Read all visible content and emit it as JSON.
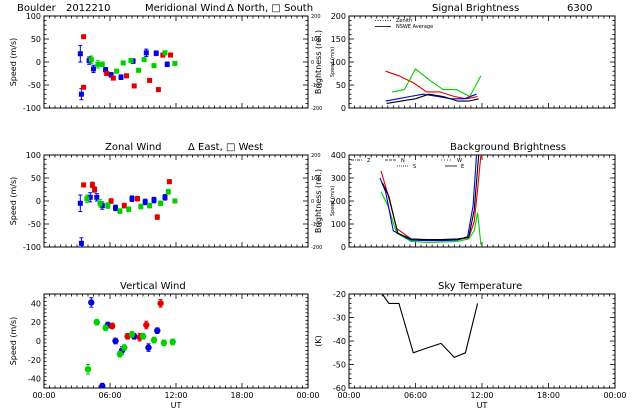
{
  "header": {
    "site": "Boulder",
    "date": "2012210"
  },
  "colors": {
    "red": "#e00000",
    "green": "#00d000",
    "blue": "#0000e0",
    "black": "#000000"
  },
  "chart_data": [
    {
      "id": "meridional",
      "type": "scatter",
      "title": "Meridional Wind",
      "legend_text": "Δ North, □ South",
      "ylabel": "Speed (m/s)",
      "y2label": "Speed (m/s)",
      "xlabel": "",
      "xlim": [
        0,
        24
      ],
      "ylim": [
        -100,
        100
      ],
      "y2lim": [
        -200,
        200
      ],
      "xticks": [
        0,
        6,
        12,
        18,
        24
      ],
      "xticklabels": [
        "",
        "",
        "",
        "",
        ""
      ],
      "yticks": [
        -100,
        -50,
        0,
        50,
        100
      ],
      "yticklabels": [
        "-100",
        "-50",
        "0",
        "50",
        "100"
      ],
      "y2ticks": [
        -200,
        -100,
        0,
        100,
        200
      ],
      "y2ticklabels": [
        "-200",
        "-100",
        "0",
        "100",
        "200"
      ],
      "series": [
        {
          "name": "blue",
          "color": "#0000e0",
          "marker": "square",
          "points": [
            {
              "x": 3.3,
              "y": 18,
              "err": 18
            },
            {
              "x": 3.4,
              "y": -70,
              "err": 12
            },
            {
              "x": 4.1,
              "y": 3,
              "err": 8
            },
            {
              "x": 4.5,
              "y": -15,
              "err": 8
            },
            {
              "x": 5.6,
              "y": -17,
              "err": 5
            },
            {
              "x": 6.1,
              "y": -28,
              "err": 5
            },
            {
              "x": 7.0,
              "y": -33,
              "err": 5
            },
            {
              "x": 8.1,
              "y": 2,
              "err": 5
            },
            {
              "x": 9.3,
              "y": 20,
              "err": 8
            },
            {
              "x": 10.2,
              "y": 19,
              "err": 5
            },
            {
              "x": 11.2,
              "y": -5,
              "err": 5
            }
          ]
        },
        {
          "name": "red",
          "color": "#e00000",
          "marker": "square",
          "points": [
            {
              "x": 3.6,
              "y": 55,
              "err": 3
            },
            {
              "x": 3.6,
              "y": -55,
              "err": 3
            },
            {
              "x": 5.7,
              "y": -25,
              "err": 4
            },
            {
              "x": 6.3,
              "y": -35,
              "err": 4
            },
            {
              "x": 7.5,
              "y": -30,
              "err": 4
            },
            {
              "x": 8.2,
              "y": -52,
              "err": 4
            },
            {
              "x": 9.6,
              "y": -40,
              "err": 4
            },
            {
              "x": 10.4,
              "y": -60,
              "err": 4
            },
            {
              "x": 10.8,
              "y": 15,
              "err": 4
            },
            {
              "x": 11.5,
              "y": 15,
              "err": 4
            }
          ]
        },
        {
          "name": "green",
          "color": "#00d000",
          "marker": "square",
          "points": [
            {
              "x": 4.3,
              "y": 5,
              "err": 8
            },
            {
              "x": 4.9,
              "y": -5,
              "err": 8
            },
            {
              "x": 5.3,
              "y": -5,
              "err": 5
            },
            {
              "x": 6.6,
              "y": -20,
              "err": 4
            },
            {
              "x": 7.2,
              "y": -2,
              "err": 4
            },
            {
              "x": 7.9,
              "y": 3,
              "err": 4
            },
            {
              "x": 8.6,
              "y": -18,
              "err": 4
            },
            {
              "x": 9.1,
              "y": 5,
              "err": 4
            },
            {
              "x": 10.0,
              "y": -8,
              "err": 4
            },
            {
              "x": 11.0,
              "y": 20,
              "err": 4
            },
            {
              "x": 11.9,
              "y": -3,
              "err": 4
            }
          ]
        }
      ]
    },
    {
      "id": "zonal",
      "type": "scatter",
      "title": "Zonal Wind",
      "legend_text": "Δ East, □ West",
      "ylabel": "Speed (m/s)",
      "y2label": "Speed (m/s)",
      "xlabel": "",
      "xlim": [
        0,
        24
      ],
      "ylim": [
        -100,
        100
      ],
      "y2lim": [
        -200,
        200
      ],
      "xticks": [
        0,
        6,
        12,
        18,
        24
      ],
      "xticklabels": [
        "",
        "",
        "",
        "",
        ""
      ],
      "yticks": [
        -100,
        -50,
        0,
        50,
        100
      ],
      "yticklabels": [
        "-100",
        "-50",
        "0",
        "50",
        "100"
      ],
      "y2ticks": [
        -200,
        -100,
        0,
        100,
        200
      ],
      "y2ticklabels": [
        "-200",
        "-100",
        "0",
        "100",
        "200"
      ],
      "series": [
        {
          "name": "blue",
          "color": "#0000e0",
          "marker": "square",
          "points": [
            {
              "x": 3.3,
              "y": -5,
              "err": 18
            },
            {
              "x": 3.4,
              "y": -92,
              "err": 12
            },
            {
              "x": 4.2,
              "y": 8,
              "err": 10
            },
            {
              "x": 4.8,
              "y": 8,
              "err": 8
            },
            {
              "x": 5.3,
              "y": -10,
              "err": 8
            },
            {
              "x": 6.5,
              "y": -15,
              "err": 6
            },
            {
              "x": 8.0,
              "y": 5,
              "err": 6
            },
            {
              "x": 9.2,
              "y": -2,
              "err": 6
            },
            {
              "x": 10.0,
              "y": 2,
              "err": 6
            },
            {
              "x": 11.0,
              "y": 8,
              "err": 6
            }
          ]
        },
        {
          "name": "red",
          "color": "#e00000",
          "marker": "square",
          "points": [
            {
              "x": 3.6,
              "y": 35,
              "err": 4
            },
            {
              "x": 4.4,
              "y": 35,
              "err": 6
            },
            {
              "x": 4.6,
              "y": 25,
              "err": 6
            },
            {
              "x": 6.1,
              "y": 0,
              "err": 5
            },
            {
              "x": 7.3,
              "y": -10,
              "err": 5
            },
            {
              "x": 8.5,
              "y": 5,
              "err": 5
            },
            {
              "x": 10.3,
              "y": -35,
              "err": 5
            },
            {
              "x": 11.4,
              "y": 42,
              "err": 4
            }
          ]
        },
        {
          "name": "green",
          "color": "#00d000",
          "marker": "square",
          "points": [
            {
              "x": 3.9,
              "y": 5,
              "err": 8
            },
            {
              "x": 5.1,
              "y": -5,
              "err": 8
            },
            {
              "x": 5.8,
              "y": -10,
              "err": 6
            },
            {
              "x": 6.9,
              "y": -22,
              "err": 5
            },
            {
              "x": 7.7,
              "y": -18,
              "err": 5
            },
            {
              "x": 8.8,
              "y": -12,
              "err": 5
            },
            {
              "x": 9.6,
              "y": -10,
              "err": 5
            },
            {
              "x": 10.6,
              "y": -5,
              "err": 5
            },
            {
              "x": 11.3,
              "y": 20,
              "err": 5
            },
            {
              "x": 11.9,
              "y": 0,
              "err": 4
            }
          ]
        }
      ]
    },
    {
      "id": "vertical",
      "type": "scatter",
      "title": "Vertical Wind",
      "ylabel": "Speed (m/s)",
      "xlabel": "UT",
      "xlim": [
        0,
        24
      ],
      "ylim": [
        -50,
        50
      ],
      "xticks": [
        0,
        6,
        12,
        18,
        24
      ],
      "xticklabels": [
        "00:00",
        "06:00",
        "12:00",
        "18:00",
        "00:00"
      ],
      "yticks": [
        -40,
        -20,
        0,
        20,
        40
      ],
      "yticklabels": [
        "-40",
        "-20",
        "0",
        "20",
        "40"
      ],
      "series": [
        {
          "name": "blue",
          "color": "#0000e0",
          "marker": "circle",
          "points": [
            {
              "x": 4.3,
              "y": 41,
              "err": 5
            },
            {
              "x": 5.3,
              "y": -48,
              "err": 3
            },
            {
              "x": 5.8,
              "y": 17,
              "err": 3
            },
            {
              "x": 6.5,
              "y": 0,
              "err": 3
            },
            {
              "x": 7.1,
              "y": -10,
              "err": 4
            },
            {
              "x": 8.2,
              "y": 5,
              "err": 3
            },
            {
              "x": 9.5,
              "y": -7,
              "err": 4
            },
            {
              "x": 10.3,
              "y": 11,
              "err": 3
            }
          ]
        },
        {
          "name": "red",
          "color": "#e00000",
          "marker": "circle",
          "points": [
            {
              "x": 6.2,
              "y": 16,
              "err": 3
            },
            {
              "x": 7.6,
              "y": 5,
              "err": 3
            },
            {
              "x": 8.7,
              "y": 4,
              "err": 4
            },
            {
              "x": 9.3,
              "y": 17,
              "err": 4
            },
            {
              "x": 10.6,
              "y": 40,
              "err": 4
            }
          ]
        },
        {
          "name": "green",
          "color": "#00d000",
          "marker": "circle",
          "points": [
            {
              "x": 4.0,
              "y": -30,
              "err": 5
            },
            {
              "x": 4.8,
              "y": 20,
              "err": 3
            },
            {
              "x": 5.6,
              "y": 14,
              "err": 3
            },
            {
              "x": 6.9,
              "y": -14,
              "err": 3
            },
            {
              "x": 7.3,
              "y": -7,
              "err": 3
            },
            {
              "x": 8.0,
              "y": 7,
              "err": 3
            },
            {
              "x": 9.0,
              "y": 5,
              "err": 3
            },
            {
              "x": 10.0,
              "y": 1,
              "err": 3
            },
            {
              "x": 10.9,
              "y": -2,
              "err": 3
            },
            {
              "x": 11.7,
              "y": -1,
              "err": 3
            }
          ]
        }
      ]
    },
    {
      "id": "signal",
      "type": "line",
      "title": "Signal Brightness",
      "title_extra": "6300",
      "ylabel": "Brightness (rel.)",
      "xlabel": "",
      "xlim": [
        0,
        24
      ],
      "ylim": [
        0,
        200
      ],
      "xticks": [
        0,
        6,
        12,
        18,
        24
      ],
      "xticklabels": [
        "",
        "",
        "",
        "",
        ""
      ],
      "yticks": [
        0,
        50,
        100,
        150,
        200
      ],
      "yticklabels": [
        "0",
        "50",
        "100",
        "150",
        "200"
      ],
      "legend": [
        {
          "label": "Zenith",
          "style": "dotted"
        },
        {
          "label": "NSWE Average",
          "style": "solid"
        }
      ],
      "series": [
        {
          "name": "red",
          "color": "#e00000",
          "style": "solid",
          "x": [
            3.3,
            4.5,
            5.8,
            7.0,
            8.2,
            9.5,
            10.6,
            11.6
          ],
          "y": [
            80,
            70,
            55,
            35,
            35,
            25,
            20,
            25
          ]
        },
        {
          "name": "green",
          "color": "#00d000",
          "style": "solid",
          "x": [
            3.9,
            5.0,
            6.0,
            7.3,
            8.5,
            9.7,
            10.9,
            11.9
          ],
          "y": [
            35,
            40,
            85,
            60,
            40,
            40,
            25,
            70
          ]
        },
        {
          "name": "blue",
          "color": "#0000e0",
          "style": "solid",
          "x": [
            3.3,
            4.4,
            5.5,
            6.7,
            8.0,
            9.2,
            10.4,
            11.5
          ],
          "y": [
            15,
            20,
            25,
            30,
            25,
            20,
            20,
            30
          ]
        },
        {
          "name": "black",
          "color": "#000000",
          "style": "solid",
          "x": [
            3.4,
            4.7,
            6.0,
            7.2,
            8.5,
            9.8,
            10.8,
            11.7
          ],
          "y": [
            10,
            15,
            20,
            30,
            25,
            15,
            15,
            20
          ]
        }
      ]
    },
    {
      "id": "background",
      "type": "line",
      "title": "Background Brightness",
      "ylabel": "Brightness (rel.)",
      "xlabel": "",
      "xlim": [
        0,
        24
      ],
      "ylim": [
        0,
        400
      ],
      "xticks": [
        0,
        6,
        12,
        18,
        24
      ],
      "xticklabels": [
        "",
        "",
        "",
        "",
        ""
      ],
      "yticks": [
        0,
        100,
        200,
        300,
        400
      ],
      "yticklabels": [
        "0",
        "100",
        "200",
        "300",
        "400"
      ],
      "legend": [
        {
          "label": "Z"
        },
        {
          "label": "N"
        },
        {
          "label": "S"
        },
        {
          "label": "W"
        },
        {
          "label": "E"
        }
      ],
      "series": [
        {
          "name": "red",
          "color": "#e00000",
          "style": "solid",
          "x": [
            2.9,
            3.5,
            4.3,
            5.6,
            7.0,
            8.5,
            9.8,
            10.8,
            11.3,
            11.6,
            11.9
          ],
          "y": [
            330,
            230,
            80,
            35,
            30,
            30,
            32,
            40,
            110,
            250,
            400
          ]
        },
        {
          "name": "green",
          "color": "#00d000",
          "style": "solid",
          "x": [
            2.9,
            3.5,
            4.3,
            5.6,
            7.0,
            8.5,
            9.8,
            10.8,
            11.3,
            11.6,
            11.9
          ],
          "y": [
            240,
            180,
            60,
            25,
            20,
            22,
            24,
            35,
            70,
            150,
            10
          ]
        },
        {
          "name": "blue",
          "color": "#0000e0",
          "style": "solid",
          "x": [
            2.8,
            3.3,
            4.0,
            5.6,
            7.0,
            8.5,
            9.8,
            10.7,
            11.2,
            11.5
          ],
          "y": [
            300,
            240,
            70,
            30,
            28,
            28,
            30,
            45,
            180,
            400
          ]
        },
        {
          "name": "black",
          "color": "#000000",
          "style": "solid",
          "x": [
            3.0,
            3.6,
            4.4,
            5.6,
            7.0,
            8.5,
            9.8,
            10.8,
            11.3,
            11.7
          ],
          "y": [
            280,
            220,
            60,
            35,
            32,
            33,
            35,
            42,
            160,
            400
          ]
        }
      ]
    },
    {
      "id": "sky",
      "type": "line",
      "title": "Sky Temperature",
      "ylabel": "(K)",
      "xlabel": "UT",
      "xlim": [
        0,
        24
      ],
      "ylim": [
        -60,
        -20
      ],
      "xticks": [
        0,
        6,
        12,
        18,
        24
      ],
      "xticklabels": [
        "00:00",
        "06:00",
        "12:00",
        "18:00",
        "00:00"
      ],
      "yticks": [
        -60,
        -50,
        -40,
        -30,
        -20
      ],
      "yticklabels": [
        "-60",
        "-50",
        "-40",
        "-30",
        "-20"
      ],
      "series": [
        {
          "name": "black",
          "color": "#000000",
          "style": "solid",
          "x": [
            3.0,
            3.6,
            4.5,
            5.8,
            7.0,
            8.3,
            9.5,
            10.5,
            11.6
          ],
          "y": [
            -20,
            -24,
            -24,
            -45,
            -43,
            -41,
            -47,
            -45,
            -24
          ]
        }
      ]
    }
  ]
}
